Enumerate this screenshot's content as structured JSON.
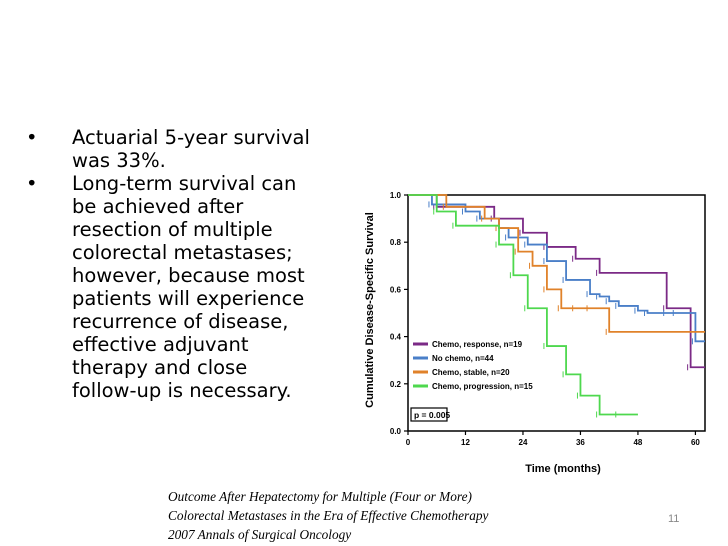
{
  "slide": {
    "bullets": [
      {
        "symbol": "•",
        "lines": [
          "Actuarial 5-year survival",
          "was 33%."
        ]
      },
      {
        "symbol": "•",
        "lines": [
          "Long-term  survival  can",
          "be  achieved  after",
          "resection  of  multiple",
          "colorectal metastases;",
          "however, because most",
          "patients will experience",
          "recurrence of disease,",
          "effective adjuvant",
          "therapy and close",
          "follow-up is necessary."
        ]
      }
    ],
    "citation": [
      "Outcome After Hepatectomy for Multiple (Four or More)",
      "Colorectal Metastases in the Era of Effective Chemotherapy",
      "2007 Annals of Surgical Oncology"
    ],
    "page_number": "11"
  },
  "chart_data": {
    "type": "line",
    "step": true,
    "xlabel": "Time (months)",
    "ylabel": "Cumulative Disease-Specific Survival",
    "xlim": [
      0,
      62
    ],
    "ylim": [
      0,
      1.0
    ],
    "xticks": [
      0,
      12,
      24,
      36,
      48,
      60
    ],
    "yticks": [
      0.0,
      0.2,
      0.4,
      0.6,
      0.8,
      1.0
    ],
    "ytick_labels": [
      "0.0",
      "0.2",
      "0.4",
      "0.6",
      "0.8",
      "1.0"
    ],
    "grid": false,
    "legend_position": "bottom-left",
    "annotation": "p = 0.005",
    "series": [
      {
        "name": "Chemo, response, n=19",
        "color": "#7b2a86",
        "x": [
          0,
          6,
          18,
          24,
          29,
          35,
          40,
          54,
          59,
          62
        ],
        "y": [
          1.0,
          0.95,
          0.9,
          0.84,
          0.78,
          0.73,
          0.67,
          0.52,
          0.27,
          0.27
        ]
      },
      {
        "name": "No chemo, n=44",
        "color": "#4a7fc8",
        "x": [
          0,
          5,
          12,
          15,
          19,
          21,
          25,
          29,
          33,
          38,
          40,
          42,
          44,
          48,
          50,
          54,
          56,
          60,
          62
        ],
        "y": [
          1.0,
          0.96,
          0.93,
          0.9,
          0.86,
          0.82,
          0.79,
          0.72,
          0.64,
          0.58,
          0.57,
          0.55,
          0.53,
          0.51,
          0.5,
          0.5,
          0.5,
          0.38,
          0.38
        ]
      },
      {
        "name": "Chemo, stable, n=20",
        "color": "#e0822a",
        "x": [
          0,
          8,
          16,
          19,
          23,
          26,
          29,
          32,
          35,
          38,
          42,
          62
        ],
        "y": [
          1.0,
          0.95,
          0.9,
          0.86,
          0.76,
          0.7,
          0.6,
          0.52,
          0.52,
          0.52,
          0.42,
          0.42
        ]
      },
      {
        "name": "Chemo, progression, n=15",
        "color": "#4ed84e",
        "x": [
          0,
          6,
          10,
          19,
          22,
          25,
          29,
          33,
          36,
          40,
          44,
          48
        ],
        "y": [
          1.0,
          0.93,
          0.87,
          0.79,
          0.66,
          0.52,
          0.36,
          0.24,
          0.15,
          0.07,
          0.07,
          0.07
        ]
      }
    ]
  }
}
